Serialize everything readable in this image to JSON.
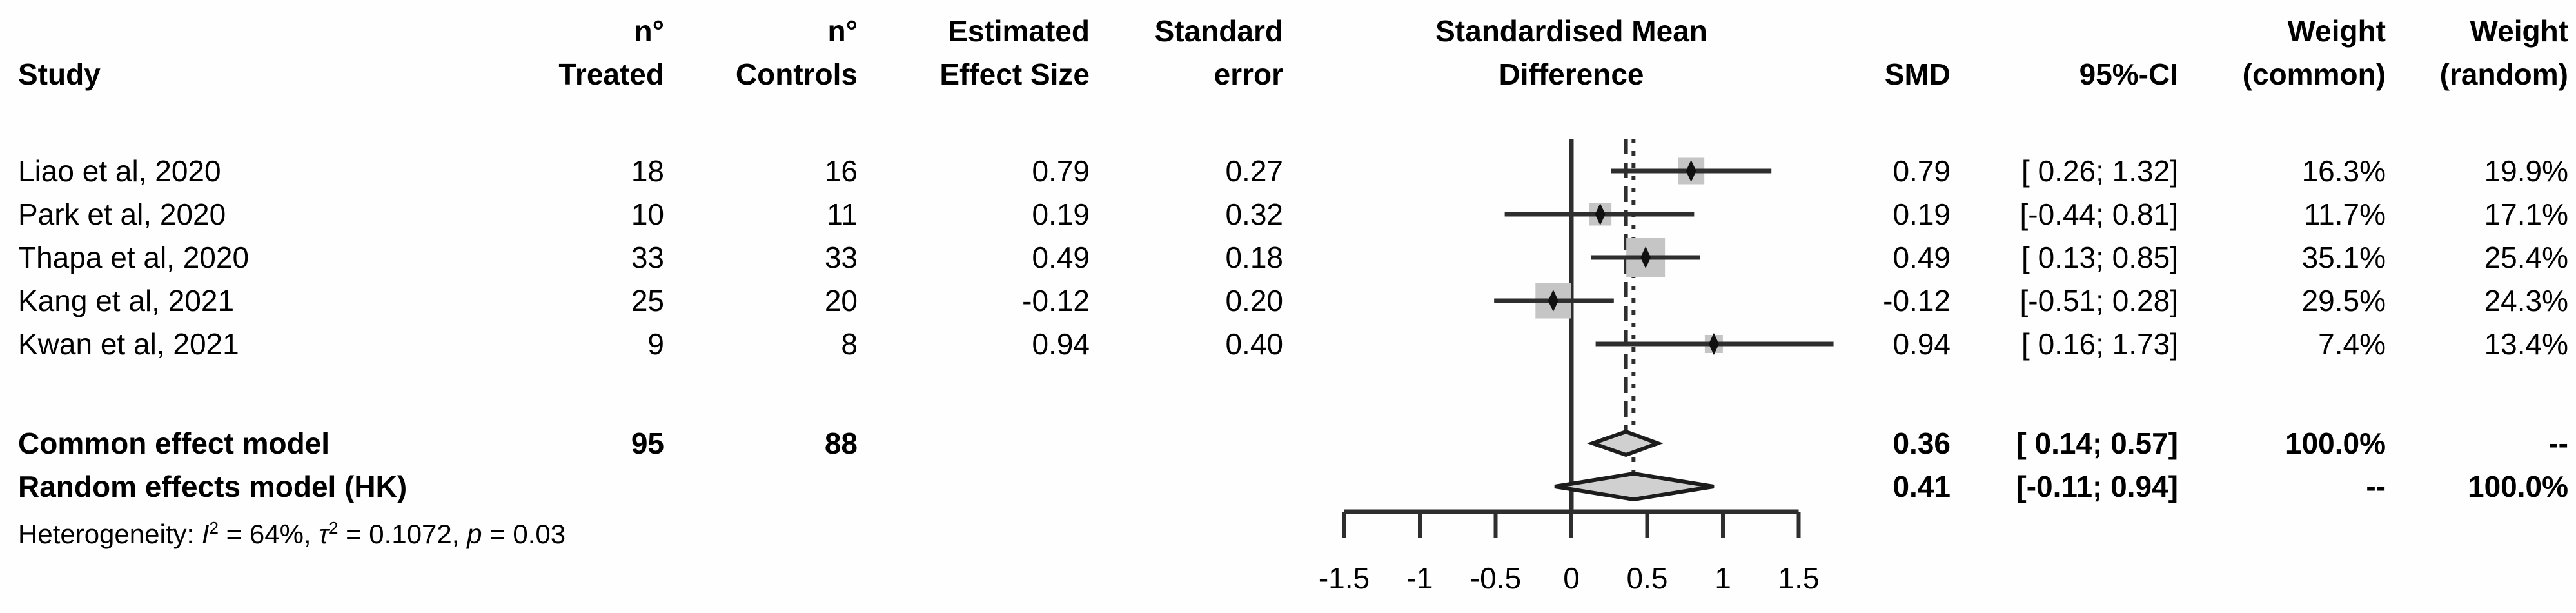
{
  "figure": {
    "background": "#fefefe",
    "text_color": "#000000",
    "line_color": "#2e2e2e",
    "square_fill": "#c5c5c5",
    "diamond_fill": "#d0d0d0",
    "diamond_stroke": "#1c1c1c",
    "marker_color": "#111111"
  },
  "headers": {
    "study": "Study",
    "n_treated_line1": "n°",
    "n_treated_line2": "Treated",
    "n_controls_line1": "n°",
    "n_controls_line2": "Controls",
    "effect_line1": "Estimated",
    "effect_line2": "Effect Size",
    "se_line1": "Standard",
    "se_line2": "error",
    "plot_line1": "Standardised Mean",
    "plot_line2": "Difference",
    "smd": "SMD",
    "ci": "95%-CI",
    "w_common_line1": "Weight",
    "w_common_line2": "(common)",
    "w_random_line1": "Weight",
    "w_random_line2": "(random)"
  },
  "chart_data": {
    "type": "forest",
    "title": "Standardised Mean Difference",
    "x_axis": {
      "min": -1.5,
      "max": 1.5,
      "tick_values": [
        -1.5,
        -1,
        -0.5,
        0,
        0.5,
        1,
        1.5
      ],
      "tick_labels": [
        "-1.5",
        "-1",
        "-0.5",
        "0",
        "0.5",
        "1",
        "1.5"
      ]
    },
    "reference_line": 0,
    "common_effect_line": {
      "value": 0.36,
      "style": "dashed"
    },
    "random_effects_line": {
      "value": 0.41,
      "style": "dotted"
    },
    "studies": [
      {
        "study": "Liao et al, 2020",
        "n_treated": "18",
        "n_controls": "16",
        "effect_size": "0.79",
        "standard_error": "0.27",
        "smd": 0.79,
        "smd_label": "0.79",
        "ci_low": 0.26,
        "ci_high": 1.32,
        "ci_label": "[ 0.26; 1.32]",
        "weight_common": 16.3,
        "weight_common_label": "16.3%",
        "weight_random": 19.9,
        "weight_random_label": "19.9%"
      },
      {
        "study": "Park et al, 2020",
        "n_treated": "10",
        "n_controls": "11",
        "effect_size": "0.19",
        "standard_error": "0.32",
        "smd": 0.19,
        "smd_label": "0.19",
        "ci_low": -0.44,
        "ci_high": 0.81,
        "ci_label": "[-0.44; 0.81]",
        "weight_common": 11.7,
        "weight_common_label": "11.7%",
        "weight_random": 17.1,
        "weight_random_label": "17.1%"
      },
      {
        "study": "Thapa et al, 2020",
        "n_treated": "33",
        "n_controls": "33",
        "effect_size": "0.49",
        "standard_error": "0.18",
        "smd": 0.49,
        "smd_label": "0.49",
        "ci_low": 0.13,
        "ci_high": 0.85,
        "ci_label": "[ 0.13; 0.85]",
        "weight_common": 35.1,
        "weight_common_label": "35.1%",
        "weight_random": 25.4,
        "weight_random_label": "25.4%"
      },
      {
        "study": "Kang et al, 2021",
        "n_treated": "25",
        "n_controls": "20",
        "effect_size": "-0.12",
        "standard_error": "0.20",
        "smd": -0.12,
        "smd_label": "-0.12",
        "ci_low": -0.51,
        "ci_high": 0.28,
        "ci_label": "[-0.51; 0.28]",
        "weight_common": 29.5,
        "weight_common_label": "29.5%",
        "weight_random": 24.3,
        "weight_random_label": "24.3%"
      },
      {
        "study": "Kwan et al, 2021",
        "n_treated": "9",
        "n_controls": "8",
        "effect_size": "0.94",
        "standard_error": "0.40",
        "smd": 0.94,
        "smd_label": "0.94",
        "ci_low": 0.16,
        "ci_high": 1.73,
        "ci_label": "[ 0.16; 1.73]",
        "weight_common": 7.4,
        "weight_common_label": "7.4%",
        "weight_random": 13.4,
        "weight_random_label": "13.4%"
      }
    ],
    "pooled": [
      {
        "label": "Common effect model",
        "n_treated": "95",
        "n_controls": "88",
        "smd": 0.36,
        "smd_label": "0.36",
        "ci_low": 0.14,
        "ci_high": 0.57,
        "ci_label": "[ 0.14; 0.57]",
        "weight_common_label": "100.0%",
        "weight_random_label": "--",
        "diamond": "common"
      },
      {
        "label": "Random effects model (HK)",
        "n_treated": "",
        "n_controls": "",
        "smd": 0.41,
        "smd_label": "0.41",
        "ci_low": -0.11,
        "ci_high": 0.94,
        "ci_label": "[-0.11; 0.94]",
        "weight_common_label": "--",
        "weight_random_label": "100.0%",
        "diamond": "random"
      }
    ],
    "heterogeneity": {
      "text": "Heterogeneity: I² = 64%, τ² = 0.1072, p = 0.03",
      "parts": [
        {
          "t": "Heterogeneity: "
        },
        {
          "t": "I",
          "i": true
        },
        {
          "t": "2",
          "sup": true
        },
        {
          "t": " = 64%, "
        },
        {
          "t": "τ",
          "i": true
        },
        {
          "t": "2",
          "sup": true
        },
        {
          "t": " = 0.1072, "
        },
        {
          "t": "p",
          "i": true
        },
        {
          "t": " = 0.03"
        }
      ]
    }
  }
}
